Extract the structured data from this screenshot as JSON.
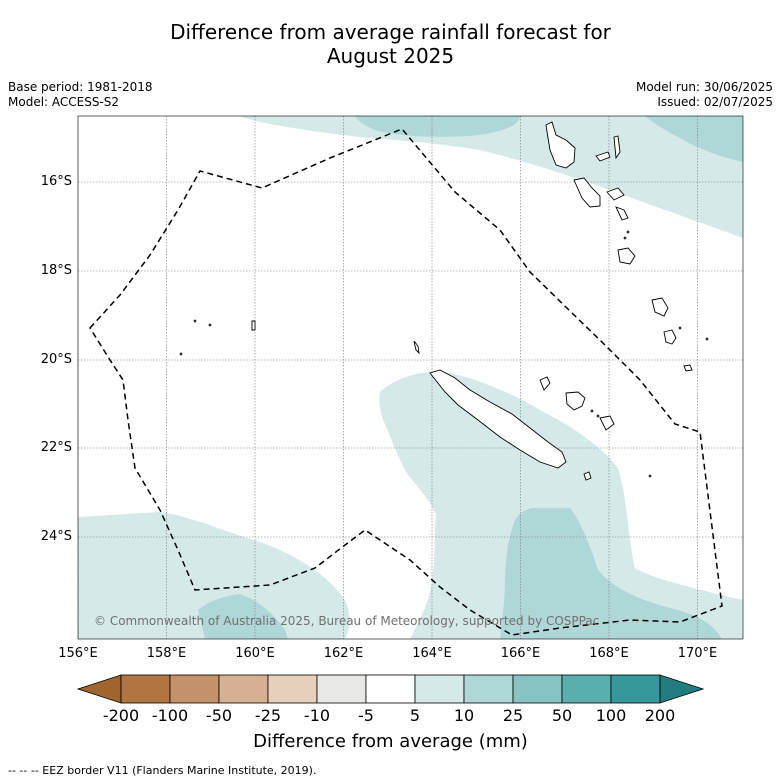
{
  "title": [
    "Difference from average rainfall forecast for",
    "August 2025"
  ],
  "meta_left": [
    "Base period: 1981-2018",
    "Model: ACCESS-S2"
  ],
  "meta_right": [
    "Model run: 30/06/2025",
    "Issued: 02/07/2025"
  ],
  "map": {
    "lon_range": [
      156,
      171
    ],
    "lat_range": [
      -26.3,
      -14.5
    ],
    "x_ticks": [
      "156°E",
      "158°E",
      "160°E",
      "162°E",
      "164°E",
      "166°E",
      "168°E",
      "170°E"
    ],
    "y_ticks": [
      "16°S",
      "18°S",
      "20°S",
      "22°S",
      "24°S"
    ],
    "copyright": "© Commonwealth of Australia 2025, Bureau of Meteorology, supported by COSPPac"
  },
  "colorbar": {
    "labels": [
      "-200",
      "-100",
      "-50",
      "-25",
      "-10",
      "-5",
      "5",
      "10",
      "25",
      "50",
      "100",
      "200"
    ],
    "colors": [
      "#a0652e",
      "#b07540",
      "#c4926a",
      "#d5b193",
      "#e6d0bc",
      "#e8e8e6",
      "#ffffff",
      "#d4e9e8",
      "#afd7d8",
      "#88c3c3",
      "#5aaeae",
      "#36989a",
      "#237d7e"
    ],
    "title": "Difference from average (mm)"
  },
  "footnote": "--  --  -- EEZ border V11 (Flanders Marine Institute, 2019)."
}
